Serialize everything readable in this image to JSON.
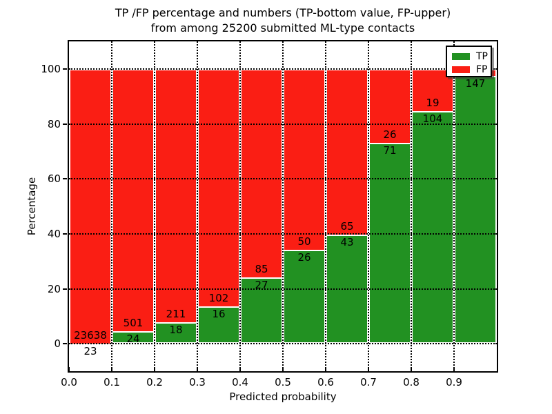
{
  "figure": {
    "title_line1": "TP /FP percentage and numbers (TP-bottom value, FP-upper)",
    "title_line2": "from among 25200 submitted ML-type contacts"
  },
  "chart_data": {
    "type": "bar",
    "stacked": true,
    "title": "TP /FP percentage and numbers (TP-bottom value, FP-upper) from among 25200 submitted ML-type contacts",
    "xlabel": "Predicted probability",
    "ylabel": "Percentage",
    "xlim": [
      0.0,
      1.0
    ],
    "ylim": [
      -10,
      110
    ],
    "grid": true,
    "x_tick_labels": [
      "0.0",
      "0.1",
      "0.2",
      "0.3",
      "0.4",
      "0.5",
      "0.6",
      "0.7",
      "0.8",
      "0.9"
    ],
    "y_ticks": [
      0,
      20,
      40,
      60,
      80,
      100
    ],
    "categories": [
      "0.0-0.1",
      "0.1-0.2",
      "0.2-0.3",
      "0.3-0.4",
      "0.4-0.5",
      "0.5-0.6",
      "0.6-0.7",
      "0.7-0.8",
      "0.8-0.9",
      "0.9-1.0"
    ],
    "series": [
      {
        "name": "TP",
        "counts": [
          23,
          24,
          18,
          16,
          27,
          26,
          43,
          71,
          104,
          147
        ]
      },
      {
        "name": "FP",
        "counts": [
          23638,
          501,
          211,
          102,
          85,
          50,
          65,
          26,
          19,
          null
        ]
      }
    ],
    "tp_pct": [
      0.1,
      4.57,
      7.86,
      13.56,
      24.11,
      34.21,
      39.81,
      73.2,
      84.55,
      97.35
    ],
    "bar_labels": {
      "tp": [
        "23",
        "24",
        "18",
        "16",
        "27",
        "26",
        "43",
        "71",
        "104",
        "147"
      ],
      "fp": [
        "23638",
        "501",
        "211",
        "102",
        "85",
        "50",
        "65",
        "26",
        "19",
        ""
      ]
    },
    "legend": {
      "position": "upper right",
      "items": [
        {
          "label": "TP",
          "color": "#229122"
        },
        {
          "label": "FP",
          "color": "#fa1e14"
        }
      ]
    }
  },
  "colors": {
    "tp": "#229122",
    "fp": "#fa1e14",
    "grid": "#000000",
    "edge": "#ffffff",
    "text": "#000000"
  }
}
